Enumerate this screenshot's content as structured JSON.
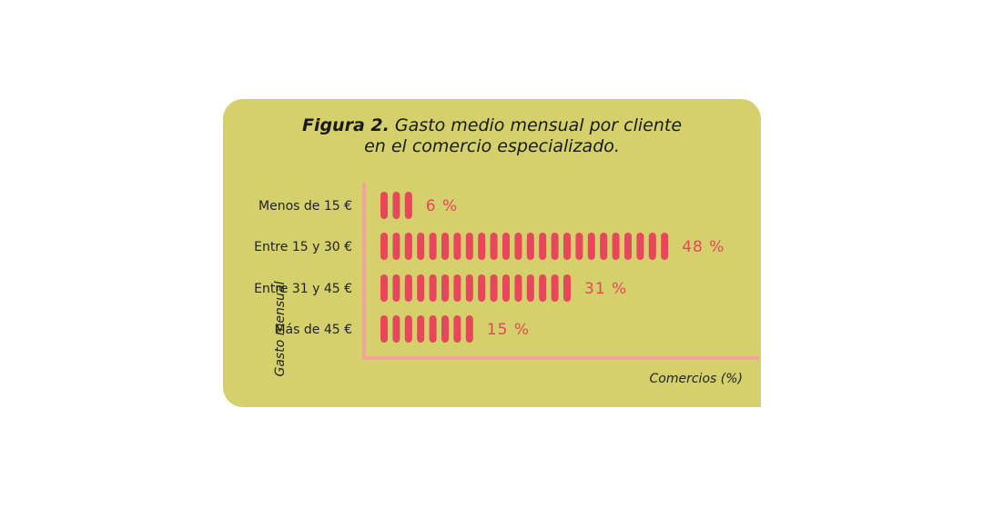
{
  "colors": {
    "background": "#d4d06c",
    "bars": "#e8465a",
    "axis": "#f2a39a"
  },
  "chart_data": {
    "type": "bar",
    "orientation": "horizontal",
    "title_bold": "Figura 2.",
    "title_line1": "Gasto medio mensual por cliente",
    "title_line2": "en el comercio especializado.",
    "ylabel": "Gasto mensual",
    "xlabel": "Comercios (%)",
    "categories": [
      "Menos de 15 €",
      "Entre 15 y 30 €",
      "Entre 31 y 45 €",
      "Más de 45 €"
    ],
    "values": [
      6,
      48,
      31,
      15
    ],
    "value_labels": [
      "6 %",
      "48 %",
      "31 %",
      "15 %"
    ],
    "grid": false,
    "legend": "none"
  }
}
